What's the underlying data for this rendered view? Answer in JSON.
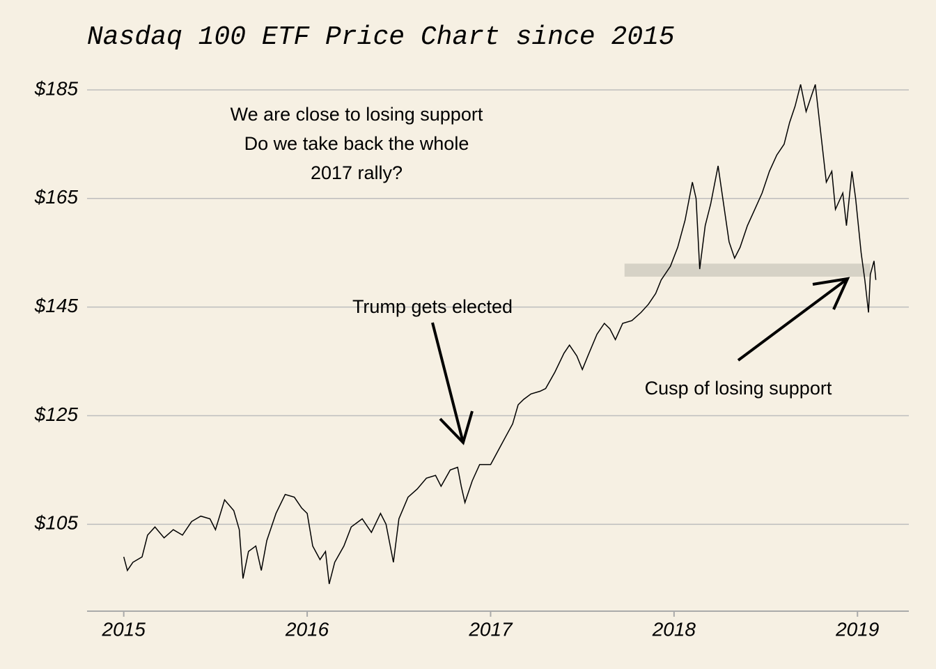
{
  "chart_data": {
    "type": "line",
    "title": "Nasdaq 100 ETF Price Chart since 2015",
    "color": "#000000",
    "x": [
      2015.0,
      2015.02,
      2015.05,
      2015.1,
      2015.13,
      2015.17,
      2015.22,
      2015.27,
      2015.32,
      2015.37,
      2015.42,
      2015.47,
      2015.5,
      2015.55,
      2015.6,
      2015.63,
      2015.65,
      2015.68,
      2015.72,
      2015.75,
      2015.78,
      2015.83,
      2015.88,
      2015.93,
      2015.97,
      2016.0,
      2016.03,
      2016.07,
      2016.1,
      2016.12,
      2016.15,
      2016.2,
      2016.24,
      2016.3,
      2016.35,
      2016.4,
      2016.43,
      2016.47,
      2016.5,
      2016.55,
      2016.6,
      2016.65,
      2016.7,
      2016.73,
      2016.78,
      2016.82,
      2016.84,
      2016.86,
      2016.9,
      2016.94,
      2016.97,
      2017.0,
      2017.04,
      2017.08,
      2017.12,
      2017.15,
      2017.18,
      2017.22,
      2017.27,
      2017.3,
      2017.35,
      2017.4,
      2017.43,
      2017.47,
      2017.5,
      2017.53,
      2017.58,
      2017.62,
      2017.65,
      2017.68,
      2017.72,
      2017.77,
      2017.82,
      2017.86,
      2017.9,
      2017.93,
      2017.98,
      2018.02,
      2018.06,
      2018.1,
      2018.12,
      2018.14,
      2018.17,
      2018.2,
      2018.24,
      2018.27,
      2018.3,
      2018.33,
      2018.36,
      2018.4,
      2018.44,
      2018.48,
      2018.52,
      2018.56,
      2018.6,
      2018.63,
      2018.66,
      2018.69,
      2018.72,
      2018.75,
      2018.77,
      2018.8,
      2018.83,
      2018.86,
      2018.88,
      2018.92,
      2018.94,
      2018.97,
      2018.99,
      2019.02,
      2019.04,
      2019.06,
      2019.07,
      2019.09,
      2019.1
    ],
    "values": [
      99,
      96.5,
      98,
      99,
      103,
      104.5,
      102.5,
      104,
      103,
      105.5,
      106.5,
      106,
      104,
      109.5,
      107.5,
      104,
      95,
      100,
      101,
      96.5,
      102,
      107,
      110.5,
      110,
      108,
      107,
      101,
      98.5,
      100,
      94,
      98,
      101,
      104.5,
      106,
      103.5,
      107,
      105,
      98,
      106,
      110,
      111.5,
      113.5,
      114,
      112,
      115,
      115.5,
      112,
      109,
      113,
      116,
      116,
      116,
      118.5,
      121,
      123.5,
      127,
      128,
      129,
      129.5,
      130,
      133,
      136.5,
      138,
      136,
      133.5,
      136,
      140,
      142,
      141,
      139,
      142,
      142.5,
      144,
      145.5,
      147.5,
      150,
      152.5,
      156,
      161,
      168,
      165,
      152,
      160,
      164,
      171,
      164,
      157,
      154,
      156,
      160,
      163,
      166,
      170,
      173,
      175,
      179,
      182,
      186,
      181,
      184,
      186,
      177,
      168,
      170,
      163,
      166,
      160,
      170,
      165,
      155,
      150,
      144,
      151,
      153.5,
      150
    ],
    "xlim": [
      2014.8,
      2019.28
    ],
    "xticks": [
      2015,
      2016,
      2017,
      2018,
      2019
    ],
    "ylim": [
      89,
      190
    ],
    "yticks": [
      {
        "value": 105,
        "label": "$105"
      },
      {
        "value": 125,
        "label": "$125"
      },
      {
        "value": 145,
        "label": "$145"
      },
      {
        "value": 165,
        "label": "$165"
      },
      {
        "value": 185,
        "label": "$185"
      }
    ],
    "grid": true,
    "support_band": {
      "xlim": [
        2017.73,
        2019.07
      ],
      "ylim": [
        150.6,
        153
      ]
    },
    "annotations": [
      {
        "lines": [
          "We are close to losing support",
          "Do we take back the whole",
          "2017 rally?"
        ]
      },
      {
        "lines": [
          "Trump gets elected"
        ]
      },
      {
        "lines": [
          "Cusp of losing support"
        ]
      }
    ]
  }
}
